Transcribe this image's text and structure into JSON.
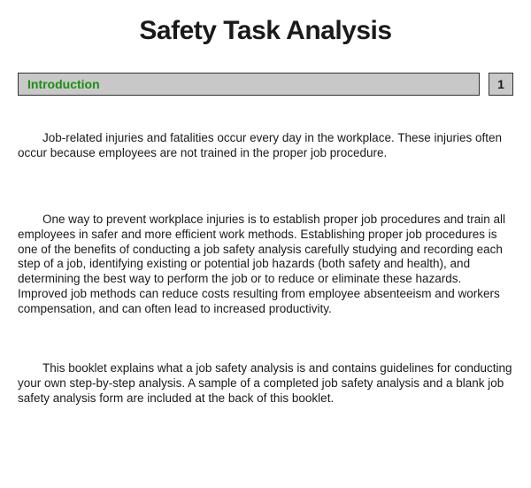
{
  "title": "Safety Task Analysis",
  "section": {
    "label": "Introduction",
    "page_number": "1",
    "header_bg": "#c8c8c8",
    "header_text_color": "#1a9010",
    "border_color": "#333333"
  },
  "paragraphs": [
    "Job-related injuries and fatalities occur every day in the workplace.  These injuries often occur because employees are not trained in the proper job procedure.",
    "One way to prevent workplace injuries is to establish proper job procedures and train all employees in safer and more efficient work methods.  Establishing proper job procedures is one of the benefits of conducting a job safety analysis carefully studying and recording each step of a job, identifying existing or potential job hazards (both safety and health), and determining the best way to perform the job or to reduce or eliminate these hazards.  Improved job methods can reduce costs resulting from employee absenteeism and workers compensation, and can often lead to increased productivity.",
    "This booklet explains what a job safety analysis is and contains guidelines for conducting your own step-by-step analysis.  A sample of a completed job safety analysis and a blank job safety analysis form are included at the back of this booklet."
  ],
  "typography": {
    "title_fontsize": 30,
    "body_fontsize": 13.5,
    "section_fontsize": 14,
    "body_color": "#1a1a1a",
    "background_color": "#ffffff"
  }
}
